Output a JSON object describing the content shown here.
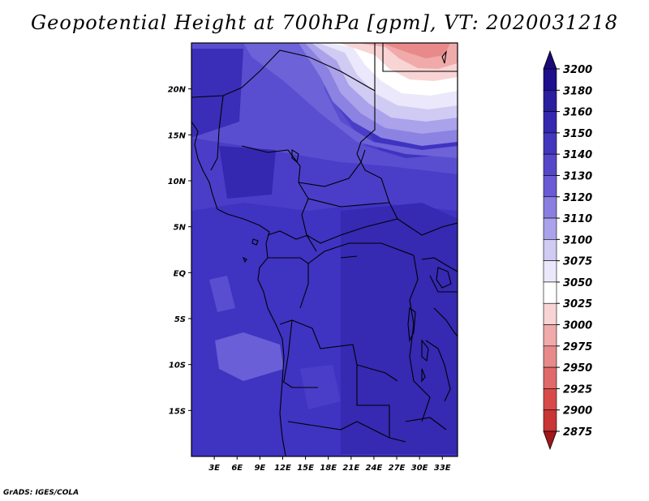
{
  "title": "Geopotential Height at 700hPa [gpm], VT: 2020031218",
  "credit": "GrADS: IGES/COLA",
  "map": {
    "lon_range": [
      0,
      35
    ],
    "lat_range": [
      -20,
      25
    ],
    "lat_ticks": [
      {
        "value": 20,
        "label": "20N"
      },
      {
        "value": 15,
        "label": "15N"
      },
      {
        "value": 10,
        "label": "10N"
      },
      {
        "value": 5,
        "label": "5N"
      },
      {
        "value": 0,
        "label": "EQ"
      },
      {
        "value": -5,
        "label": "5S"
      },
      {
        "value": -10,
        "label": "10S"
      },
      {
        "value": -15,
        "label": "15S"
      }
    ],
    "lon_ticks": [
      {
        "value": 3,
        "label": "3E"
      },
      {
        "value": 6,
        "label": "6E"
      },
      {
        "value": 9,
        "label": "9E"
      },
      {
        "value": 12,
        "label": "12E"
      },
      {
        "value": 15,
        "label": "15E"
      },
      {
        "value": 18,
        "label": "18E"
      },
      {
        "value": 21,
        "label": "21E"
      },
      {
        "value": 24,
        "label": "24E"
      },
      {
        "value": 27,
        "label": "27E"
      },
      {
        "value": 30,
        "label": "30E"
      },
      {
        "value": 33,
        "label": "33E"
      }
    ]
  },
  "colorbar": {
    "levels": [
      {
        "label": "3200",
        "color": "#1f0f8c"
      },
      {
        "label": "3180",
        "color": "#2a1f9e"
      },
      {
        "label": "3160",
        "color": "#3528ae"
      },
      {
        "label": "3150",
        "color": "#4236bc"
      },
      {
        "label": "3140",
        "color": "#5547c8"
      },
      {
        "label": "3130",
        "color": "#6a5ad4"
      },
      {
        "label": "3120",
        "color": "#8a7ee0"
      },
      {
        "label": "3110",
        "color": "#aaa2ea"
      },
      {
        "label": "3100",
        "color": "#cfcbf3"
      },
      {
        "label": "3075",
        "color": "#eae8fa"
      },
      {
        "label": "3050",
        "color": "#ffffff"
      },
      {
        "label": "3025",
        "color": "#f8d4d4"
      },
      {
        "label": "3000",
        "color": "#f0aaaa"
      },
      {
        "label": "2975",
        "color": "#e88a8a"
      },
      {
        "label": "2950",
        "color": "#e06a6a"
      },
      {
        "label": "2925",
        "color": "#d84a4a"
      },
      {
        "label": "2900",
        "color": "#c93434"
      },
      {
        "label": "2875",
        "color": "#b52222"
      }
    ],
    "end_top_color": "#1a0a7a",
    "end_bottom_color": "#a01818"
  }
}
